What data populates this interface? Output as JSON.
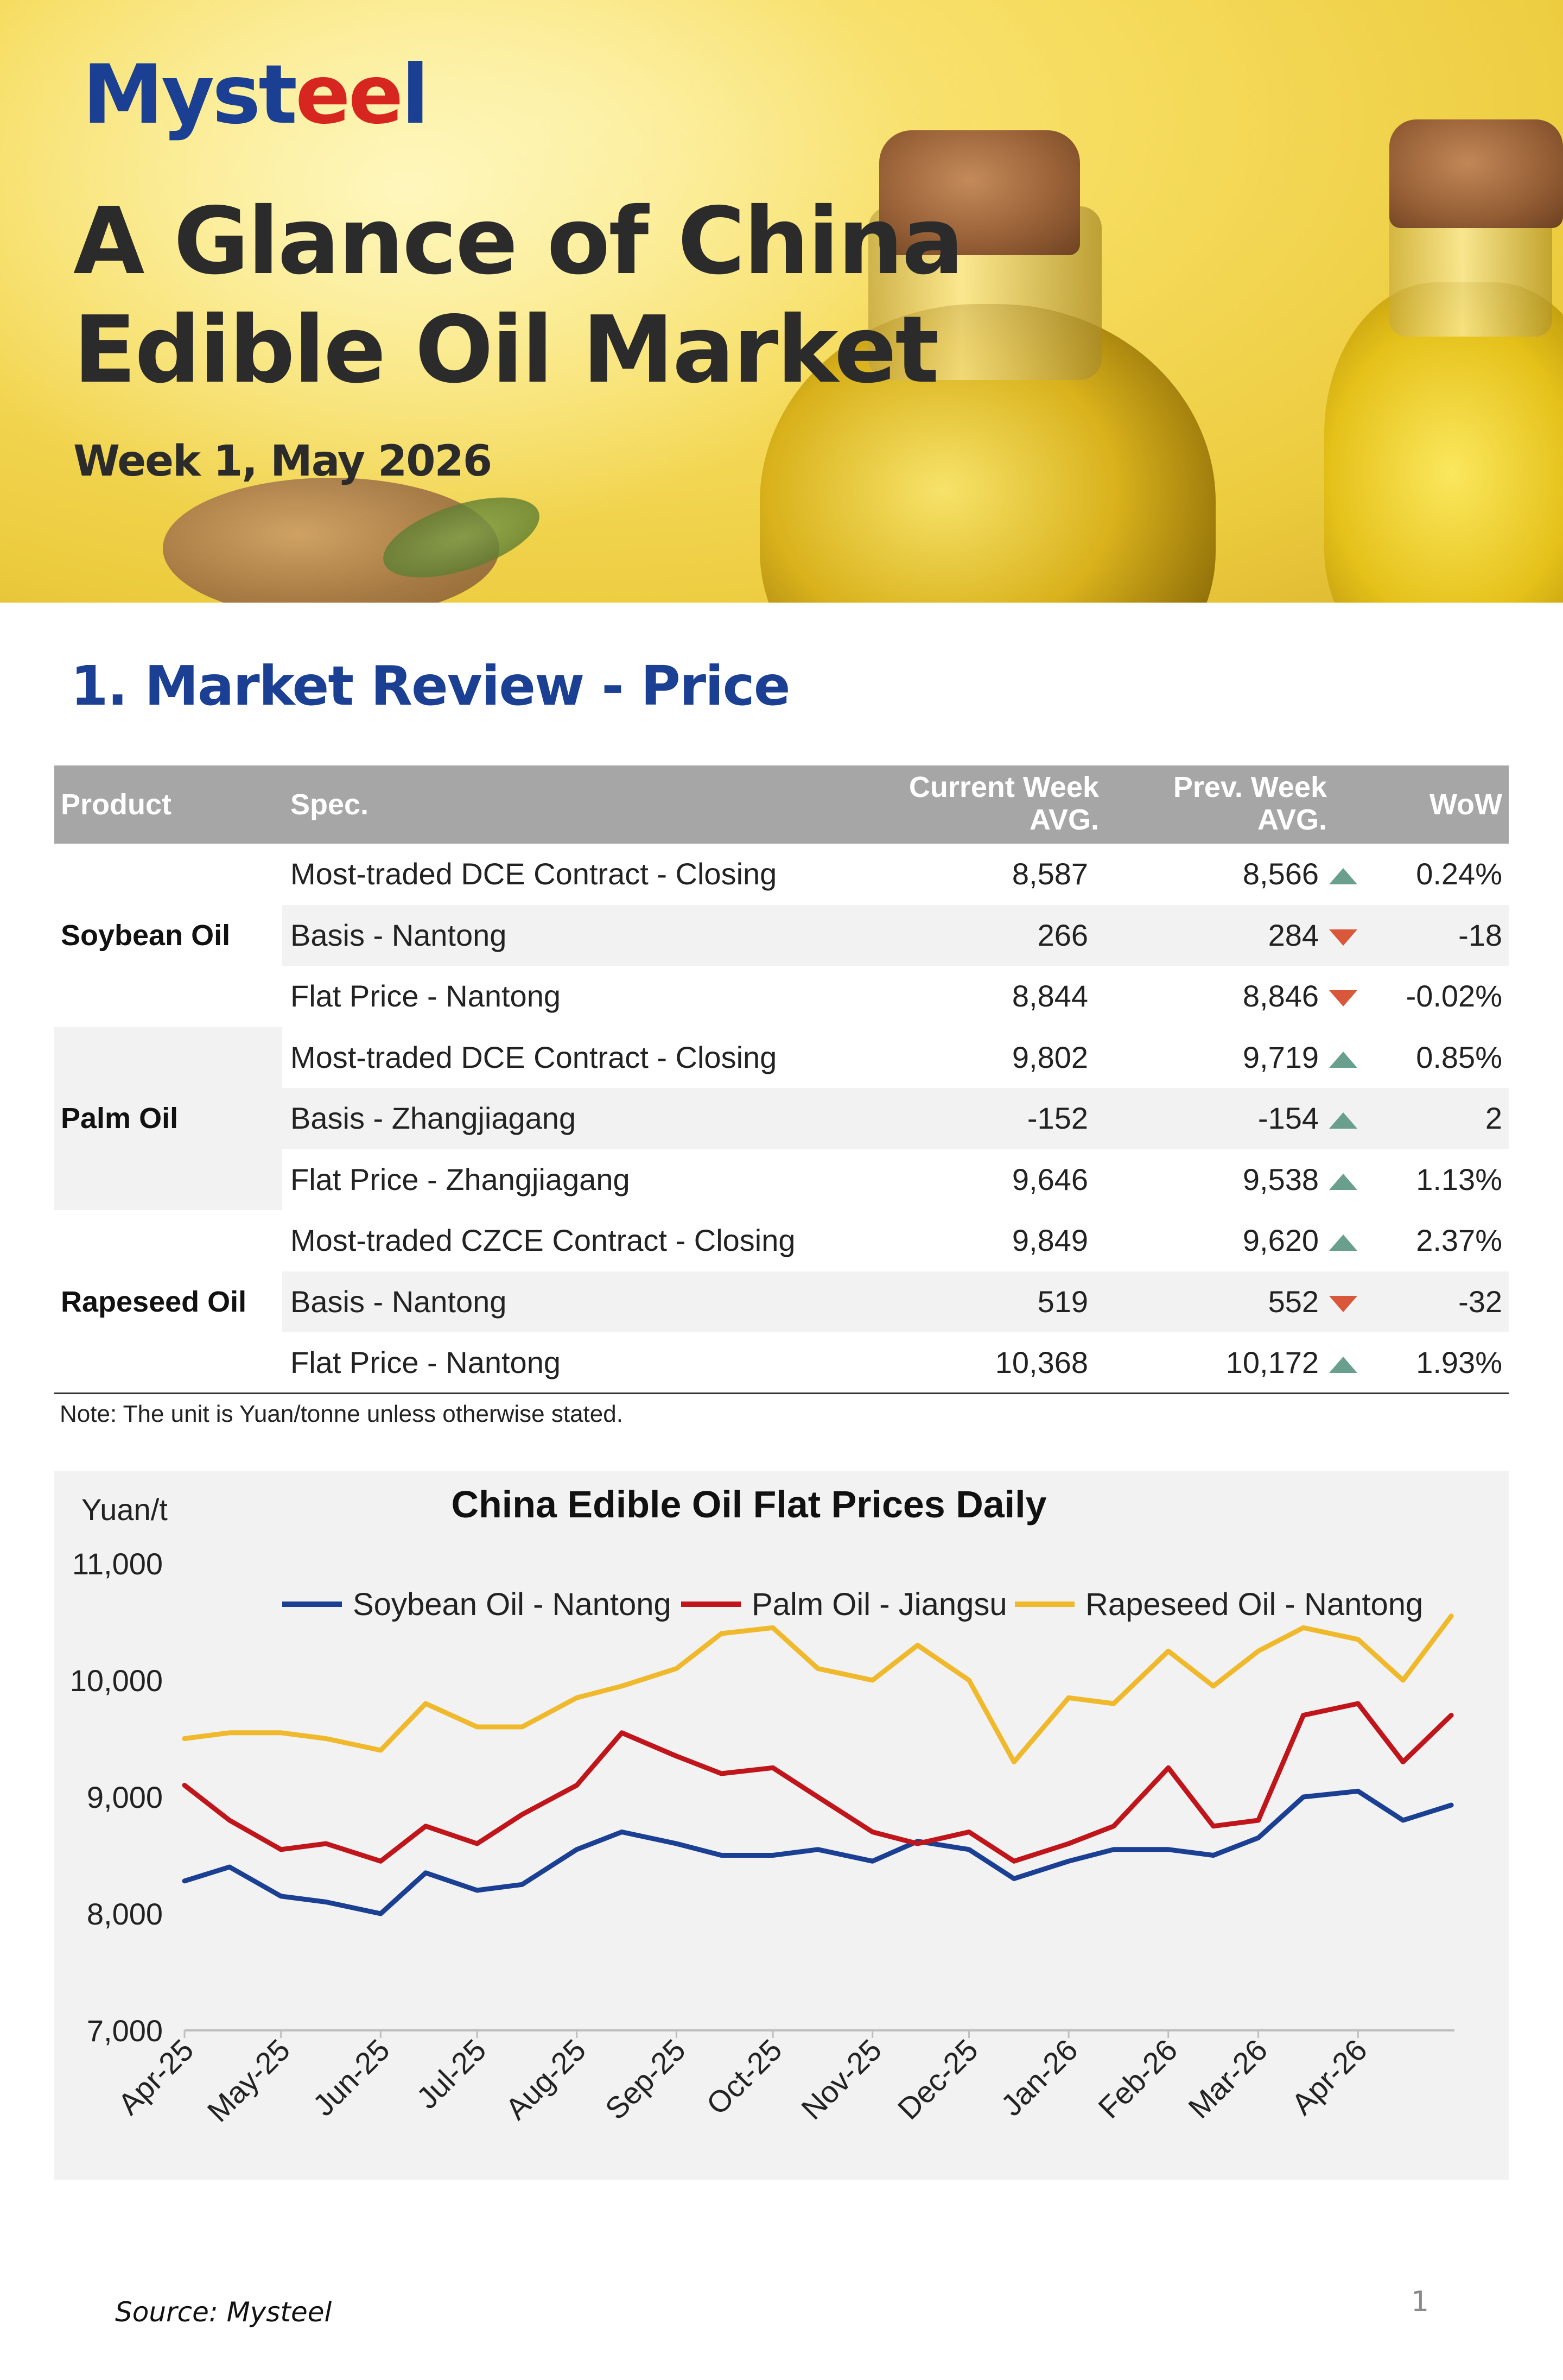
{
  "header": {
    "logo_prefix": "Myst",
    "logo_accent": "ee",
    "logo_suffix": "l",
    "title_line1": "A Glance of China",
    "title_line2": "Edible Oil Market",
    "subtitle": "Week 1, May 2026"
  },
  "section": {
    "title": "1. Market Review - Price"
  },
  "table": {
    "headers": {
      "product": "Product",
      "spec": "Spec.",
      "current_l1": "Current Week",
      "current_l2": "AVG.",
      "prev_l1": "Prev. Week",
      "prev_l2": "AVG.",
      "wow": "WoW"
    },
    "groups": [
      {
        "product": "Soybean Oil",
        "rows": [
          {
            "spec": "Most-traded DCE Contract - Closing",
            "current": "8,587",
            "prev": "8,566",
            "direction": "up",
            "wow": "0.24%"
          },
          {
            "spec": "Basis - Nantong",
            "current": "266",
            "prev": "284",
            "direction": "down",
            "wow": "-18"
          },
          {
            "spec": "Flat Price - Nantong",
            "current": "8,844",
            "prev": "8,846",
            "direction": "down",
            "wow": "-0.02%"
          }
        ]
      },
      {
        "product": "Palm Oil",
        "rows": [
          {
            "spec": "Most-traded DCE Contract - Closing",
            "current": "9,802",
            "prev": "9,719",
            "direction": "up",
            "wow": "0.85%"
          },
          {
            "spec": "Basis - Zhangjiagang",
            "current": "-152",
            "prev": "-154",
            "direction": "up",
            "wow": "2"
          },
          {
            "spec": "Flat Price - Zhangjiagang",
            "current": "9,646",
            "prev": "9,538",
            "direction": "up",
            "wow": "1.13%"
          }
        ]
      },
      {
        "product": "Rapeseed Oil",
        "rows": [
          {
            "spec": "Most-traded CZCE Contract - Closing",
            "current": "9,849",
            "prev": "9,620",
            "direction": "up",
            "wow": "2.37%"
          },
          {
            "spec": "Basis - Nantong",
            "current": "519",
            "prev": "552",
            "direction": "down",
            "wow": "-32"
          },
          {
            "spec": "Flat Price - Nantong",
            "current": "10,368",
            "prev": "10,172",
            "direction": "up",
            "wow": "1.93%"
          }
        ]
      }
    ],
    "note": "Note: The unit is Yuan/tonne unless otherwise stated.",
    "colors": {
      "header_bg": "#a6a6a6",
      "up": "#6a9e8d",
      "down": "#d9573b",
      "shade": "#f2f2f2"
    }
  },
  "chart_data": {
    "type": "line",
    "title": "China Edible Oil Flat Prices Daily",
    "ylabel": "Yuan/t",
    "ylim": [
      7000,
      11000
    ],
    "yticks": [
      7000,
      8000,
      9000,
      10000,
      11000
    ],
    "ytick_labels": [
      "7,000",
      "8,000",
      "9,000",
      "10,000",
      "11,000"
    ],
    "x_tick_labels": [
      "Apr-25",
      "May-25",
      "Jun-25",
      "Jul-25",
      "Aug-25",
      "Sep-25",
      "Oct-25",
      "Nov-25",
      "Dec-25",
      "Jan-26",
      "Feb-26",
      "Mar-26",
      "Apr-26"
    ],
    "legend_position": "top",
    "grid": false,
    "x": [
      "2025-04-01",
      "2025-04-15",
      "2025-05-01",
      "2025-05-15",
      "2025-06-01",
      "2025-06-15",
      "2025-07-01",
      "2025-07-15",
      "2025-08-01",
      "2025-08-15",
      "2025-09-01",
      "2025-09-15",
      "2025-10-01",
      "2025-10-15",
      "2025-11-01",
      "2025-11-15",
      "2025-12-01",
      "2025-12-15",
      "2026-01-01",
      "2026-01-15",
      "2026-02-01",
      "2026-02-15",
      "2026-03-01",
      "2026-03-15",
      "2026-04-01",
      "2026-04-15",
      "2026-04-30"
    ],
    "series": [
      {
        "name": "Soybean Oil - Nantong",
        "color": "#1a3f93",
        "values": [
          8280,
          8400,
          8150,
          8100,
          8000,
          8350,
          8200,
          8250,
          8550,
          8700,
          8600,
          8500,
          8500,
          8550,
          8450,
          8620,
          8550,
          8300,
          8450,
          8550,
          8550,
          8500,
          8650,
          9000,
          9050,
          8800,
          8930
        ]
      },
      {
        "name": "Palm Oil - Jiangsu",
        "color": "#c0161b",
        "values": [
          9100,
          8800,
          8550,
          8600,
          8450,
          8750,
          8600,
          8850,
          9100,
          9550,
          9350,
          9200,
          9250,
          9000,
          8700,
          8600,
          8700,
          8450,
          8600,
          8750,
          9250,
          8750,
          8800,
          9700,
          9800,
          9300,
          9700
        ]
      },
      {
        "name": "Rapeseed Oil - Nantong",
        "color": "#f0b92c",
        "values": [
          9500,
          9550,
          9550,
          9500,
          9400,
          9800,
          9600,
          9600,
          9850,
          9950,
          10100,
          10400,
          10450,
          10100,
          10000,
          10300,
          10000,
          9300,
          9850,
          9800,
          10250,
          9950,
          10250,
          10450,
          10350,
          10000,
          10550
        ]
      }
    ]
  },
  "footer": {
    "source": "Source: Mysteel",
    "page": "1"
  }
}
